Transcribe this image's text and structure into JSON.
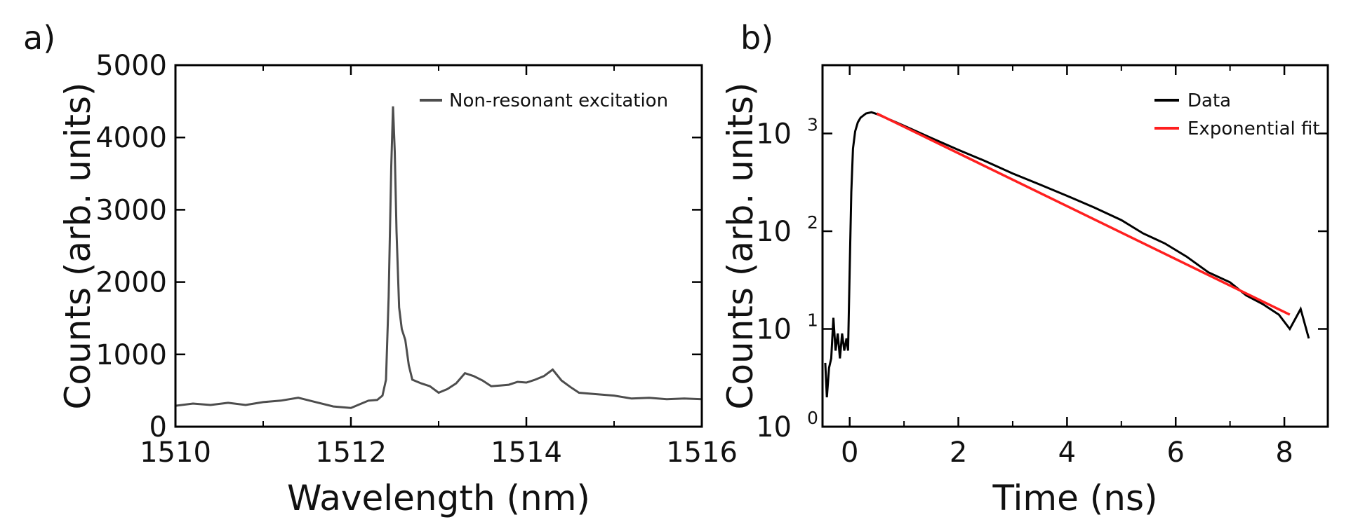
{
  "chart_data": [
    {
      "panel": "a)",
      "type": "line",
      "title": "",
      "xlabel": "Wavelength (nm)",
      "ylabel": "Counts (arb. units)",
      "xlim": [
        1510,
        1516
      ],
      "ylim": [
        0,
        5000
      ],
      "xticks": [
        1510,
        1512,
        1514,
        1516
      ],
      "yticks": [
        0,
        1000,
        2000,
        3000,
        4000,
        5000
      ],
      "grid": false,
      "legend_position": "top-right",
      "series": [
        {
          "name": "Non-resonant excitation",
          "color": "#4d4d4d",
          "x": [
            1510.0,
            1510.2,
            1510.4,
            1510.6,
            1510.8,
            1511.0,
            1511.2,
            1511.4,
            1511.6,
            1511.8,
            1512.0,
            1512.1,
            1512.2,
            1512.3,
            1512.36,
            1512.4,
            1512.43,
            1512.46,
            1512.48,
            1512.5,
            1512.52,
            1512.55,
            1512.58,
            1512.62,
            1512.66,
            1512.7,
            1512.8,
            1512.9,
            1513.0,
            1513.1,
            1513.2,
            1513.3,
            1513.4,
            1513.5,
            1513.6,
            1513.7,
            1513.8,
            1513.9,
            1514.0,
            1514.1,
            1514.2,
            1514.3,
            1514.4,
            1514.5,
            1514.6,
            1514.8,
            1515.0,
            1515.2,
            1515.4,
            1515.6,
            1515.8,
            1516.0
          ],
          "values": [
            290,
            320,
            300,
            330,
            300,
            340,
            360,
            400,
            340,
            280,
            260,
            310,
            360,
            370,
            430,
            650,
            1800,
            3600,
            4430,
            3800,
            2700,
            1650,
            1350,
            1200,
            850,
            650,
            600,
            560,
            470,
            520,
            600,
            740,
            700,
            640,
            560,
            570,
            580,
            620,
            610,
            650,
            700,
            790,
            640,
            550,
            470,
            450,
            430,
            390,
            400,
            380,
            390,
            380
          ]
        }
      ]
    },
    {
      "panel": "b)",
      "type": "line",
      "title": "",
      "xlabel": "Time (ns)",
      "ylabel": "Counts (arb. units)",
      "yscale": "log",
      "xlim": [
        -0.5,
        8.8
      ],
      "ylim": [
        1,
        5000
      ],
      "xticks": [
        0,
        2,
        4,
        6,
        8
      ],
      "yticks": [
        1,
        10,
        100,
        1000
      ],
      "ytick_bases": [
        "10",
        "10",
        "10",
        "10"
      ],
      "ytick_exponents": [
        "0",
        "1",
        "2",
        "3"
      ],
      "grid": false,
      "legend_position": "top-right",
      "series": [
        {
          "name": "Data",
          "color": "#000000",
          "x": [
            -0.45,
            -0.42,
            -0.38,
            -0.34,
            -0.3,
            -0.26,
            -0.22,
            -0.18,
            -0.14,
            -0.1,
            -0.06,
            -0.03,
            0.0,
            0.03,
            0.06,
            0.1,
            0.15,
            0.2,
            0.3,
            0.4,
            0.5,
            1.0,
            1.5,
            2.0,
            2.5,
            3.0,
            3.5,
            4.0,
            4.5,
            5.0,
            5.4,
            5.8,
            6.2,
            6.6,
            7.0,
            7.3,
            7.6,
            7.9,
            8.1,
            8.3,
            8.45
          ],
          "values": [
            4.5,
            2,
            4,
            5,
            13,
            6,
            9,
            5,
            9,
            6,
            8,
            6,
            40,
            250,
            700,
            1050,
            1300,
            1450,
            1600,
            1650,
            1580,
            1200,
            900,
            680,
            520,
            390,
            300,
            230,
            175,
            130,
            95,
            75,
            55,
            38,
            30,
            22,
            18,
            14,
            10,
            16,
            8
          ]
        },
        {
          "name": "Exponential fit",
          "color": "#ff1f1f",
          "x": [
            0.5,
            8.1
          ],
          "values": [
            1600,
            14
          ]
        }
      ]
    }
  ]
}
